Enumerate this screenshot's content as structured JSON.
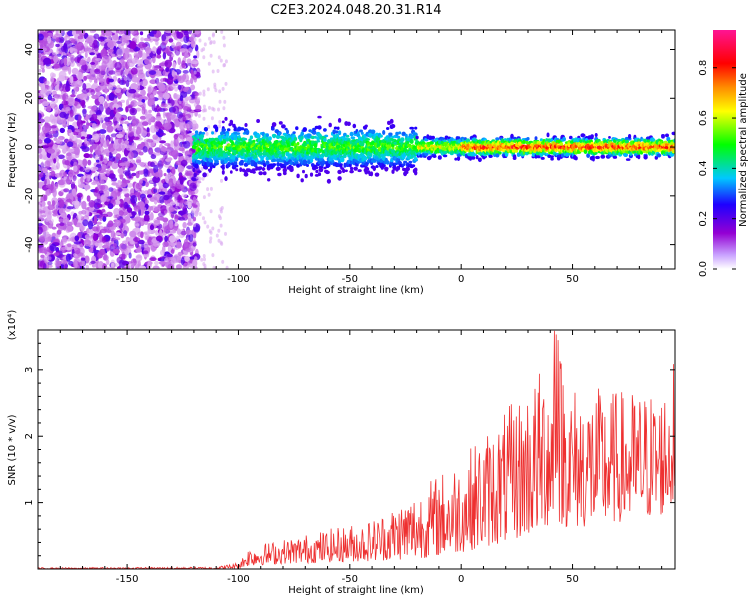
{
  "title": "C2E3.2024.048.20.31.R14",
  "chart_data": [
    {
      "type": "heatmap",
      "xlabel": "Height of straight line (km)",
      "ylabel": "Frequency (Hz)",
      "xlim": [
        -190,
        96
      ],
      "ylim": [
        -50,
        48
      ],
      "xticks": [
        -150,
        -100,
        -50,
        0,
        50
      ],
      "yticks": [
        -40,
        -20,
        0,
        20,
        40
      ],
      "colorbar": {
        "label": "Normalized spectral amplitude",
        "range": [
          0.0,
          0.95
        ],
        "ticks": [
          0.0,
          0.2,
          0.4,
          0.6,
          0.8
        ],
        "colormap": [
          "#ffffff",
          "#9400d3",
          "#1e00ff",
          "#00c8ff",
          "#00ff00",
          "#ffff00",
          "#ff8c00",
          "#ff0000",
          "#ff1493"
        ]
      },
      "description_of_content": "noise region (x < -120) scattered purple amplitudes over full frequency range; signal band centered near 0 Hz, width ~±8 Hz for x in [-120,-20], narrowing to ~±3 Hz for x > -20 with amplitudes rising to ~0.9 (red) for x > 0"
    },
    {
      "type": "line",
      "xlabel": "Height of straight line (km)",
      "ylabel": "SNR (10 * v/v)",
      "y_multiplier": "(x10⁴)",
      "xlim": [
        -190,
        96
      ],
      "ylim": [
        0,
        3.6
      ],
      "xticks": [
        -150,
        -100,
        -50,
        0,
        50
      ],
      "yticks": [
        1,
        2,
        3
      ],
      "series": [
        {
          "color": "#ee3030",
          "envelope": {
            "x": [
              -190,
              -110,
              -100,
              -95,
              -80,
              -60,
              -40,
              -20,
              0,
              20,
              35,
              42,
              50,
              70,
              90,
              96
            ],
            "low": [
              0.0,
              0.0,
              0.01,
              0.05,
              0.08,
              0.1,
              0.12,
              0.15,
              0.25,
              0.4,
              0.55,
              0.7,
              0.6,
              0.7,
              0.8,
              1.0
            ],
            "high": [
              0.02,
              0.03,
              0.1,
              0.35,
              0.45,
              0.6,
              0.75,
              1.2,
              1.7,
              2.4,
              3.0,
              3.6,
              2.8,
              2.7,
              2.7,
              3.2
            ]
          }
        }
      ]
    }
  ]
}
